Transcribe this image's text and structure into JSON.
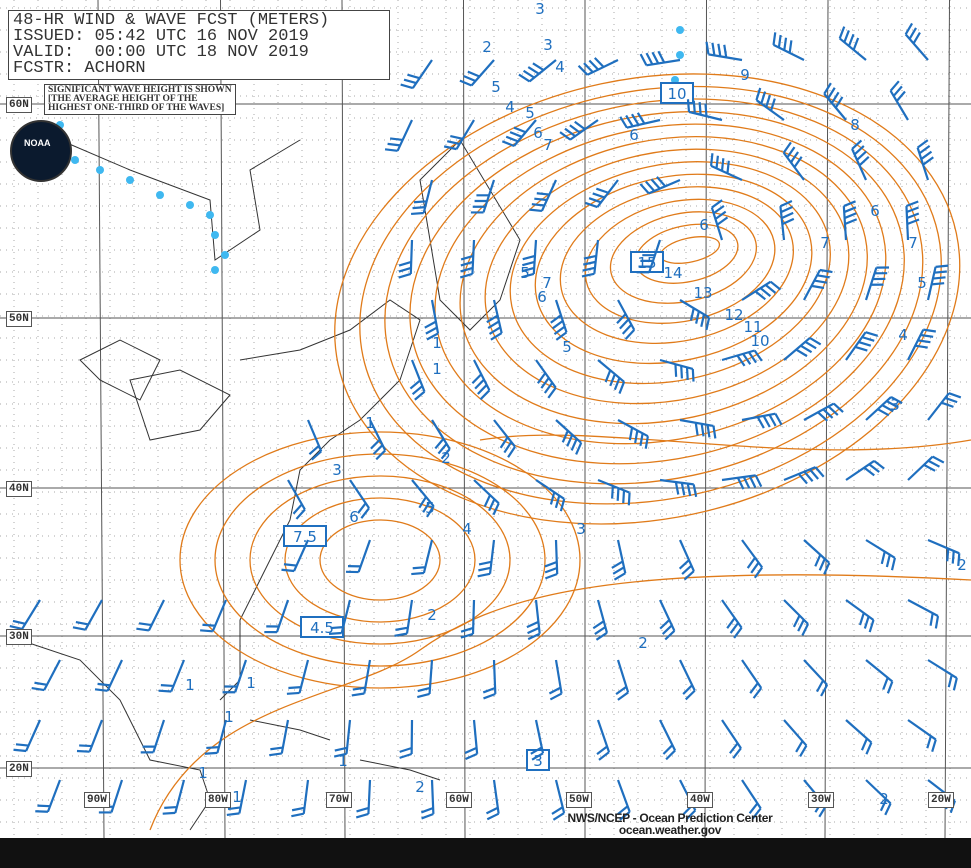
{
  "header": {
    "title": "48-HR WIND & WAVE FCST (METERS)",
    "issued": "ISSUED: 05:42 UTC 16 NOV 2019",
    "valid": "VALID:  00:00 UTC 18 NOV 2019",
    "forecaster": "FCSTR: ACHORN"
  },
  "note": [
    "SIGNIFICANT WAVE HEIGHT IS SHOWN",
    "[THE AVERAGE HEIGHT OF THE",
    "HIGHEST ONE-THIRD OF THE WAVES]"
  ],
  "logo_text": "NOAA",
  "latitude_labels": [
    "60N",
    "50N",
    "40N",
    "30N",
    "20N"
  ],
  "longitude_labels": [
    "90W",
    "80W",
    "70W",
    "60W",
    "50W",
    "40W",
    "30W",
    "20W"
  ],
  "wave_maxima": [
    "10",
    "15",
    "7.5",
    "4.5",
    "3"
  ],
  "contour_labels": [
    "3",
    "2",
    "3",
    "4",
    "5",
    "4",
    "5",
    "6",
    "7",
    "6",
    "9",
    "8",
    "6",
    "7",
    "6",
    "7",
    "5",
    "5",
    "7",
    "6",
    "14",
    "13",
    "12",
    "11",
    "10",
    "4",
    "3",
    "5",
    "1",
    "1",
    "1",
    "2",
    "3",
    "6",
    "5",
    "4",
    "3",
    "2",
    "2",
    "2",
    "1",
    "1",
    "1",
    "1",
    "1",
    "1",
    "2",
    "2"
  ],
  "credit": {
    "line1": "NWS/NCEP - Ocean Prediction Center",
    "line2": "ocean.weather.gov"
  },
  "colors": {
    "contour": "#e07b1a",
    "wind": "#1f6fbf",
    "ice_edge": "#3fb8f0",
    "coast": "#333333",
    "grid": "#555555"
  }
}
